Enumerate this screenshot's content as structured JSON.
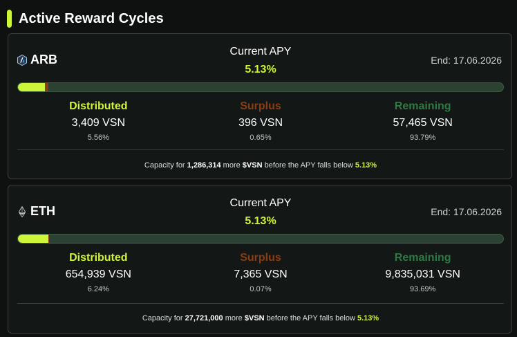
{
  "colors": {
    "accent": "#cdf53a",
    "distributed": "#cdf53a",
    "surplus": "#8a3d12",
    "remaining": "#2f7a44",
    "track": "#2b4233"
  },
  "header": {
    "title": "Active Reward Cycles"
  },
  "cycles": [
    {
      "chain": "ARB",
      "icon": "arbitrum-icon",
      "apy_label": "Current APY",
      "apy_value": "5.13%",
      "end_date": "End: 17.06.2026",
      "progress": {
        "distributed_pct": 5.56,
        "surplus_pct": 0.65,
        "remaining_pct": 93.79
      },
      "stats": [
        {
          "label": "Distributed",
          "amount": "3,409 VSN",
          "pct": "5.56%"
        },
        {
          "label": "Surplus",
          "amount": "396 VSN",
          "pct": "0.65%"
        },
        {
          "label": "Remaining",
          "amount": "57,465 VSN",
          "pct": "93.79%"
        }
      ],
      "capacity": {
        "prefix": "Capacity for",
        "amount": "1,286,314",
        "middle": "more",
        "token": "$VSN",
        "suffix": "before the APY falls below",
        "apy": "5.13%"
      }
    },
    {
      "chain": "ETH",
      "icon": "ethereum-icon",
      "apy_label": "Current APY",
      "apy_value": "5.13%",
      "end_date": "End: 17.06.2026",
      "progress": {
        "distributed_pct": 6.24,
        "surplus_pct": 0.07,
        "remaining_pct": 93.69
      },
      "stats": [
        {
          "label": "Distributed",
          "amount": "654,939 VSN",
          "pct": "6.24%"
        },
        {
          "label": "Surplus",
          "amount": "7,365 VSN",
          "pct": "0.07%"
        },
        {
          "label": "Remaining",
          "amount": "9,835,031 VSN",
          "pct": "93.69%"
        }
      ],
      "capacity": {
        "prefix": "Capacity for",
        "amount": "27,721,000",
        "middle": "more",
        "token": "$VSN",
        "suffix": "before the APY falls below",
        "apy": "5.13%"
      }
    }
  ]
}
